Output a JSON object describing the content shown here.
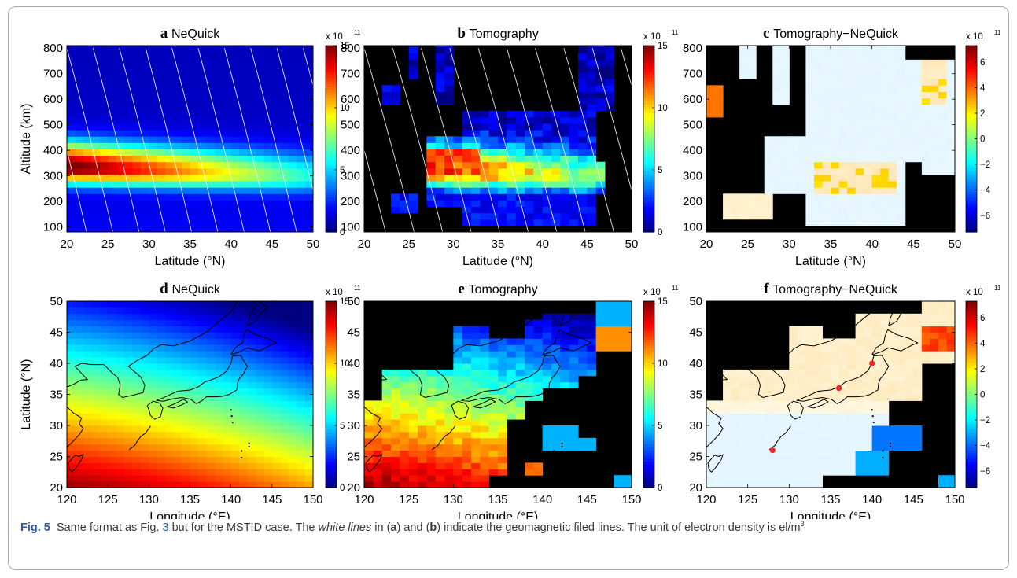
{
  "caption": {
    "label": "Fig. 5",
    "part1": "Same format as Fig. ",
    "fig_ref": "3",
    "part2": " but for the MSTID case. The ",
    "italic": "white lines",
    "part3": " in (",
    "a": "a",
    "part4": ") and (",
    "b": "b",
    "part5": ") indicate the geomagnetic filed lines. The unit of electron density is el/m",
    "sup": "3"
  },
  "chart_data": [
    {
      "id": "a",
      "panel_letter": "a",
      "panel_title": "NeQuick",
      "type": "heatmap",
      "kind": "nequick_alt",
      "xlabel": "Latitude (°N)",
      "ylabel": "Altitude (km)",
      "xlim": [
        20,
        50
      ],
      "ylim": [
        80,
        810
      ],
      "xticks": [
        "20",
        "25",
        "30",
        "35",
        "40",
        "45",
        "50"
      ],
      "yticks": [
        "100",
        "200",
        "300",
        "400",
        "500",
        "600",
        "700",
        "800"
      ],
      "colorbar": {
        "ticks": [
          "0",
          "5",
          "10",
          "15"
        ],
        "range": [
          0,
          15
        ],
        "scale_label": "x 10",
        "scale_exp": "11",
        "colormap": "jet"
      },
      "field_lines": true
    },
    {
      "id": "b",
      "panel_letter": "b",
      "panel_title": "Tomography",
      "type": "heatmap",
      "kind": "tomo_alt",
      "xlabel": "Latitude (°N)",
      "ylabel": "",
      "xlim": [
        20,
        50
      ],
      "ylim": [
        80,
        810
      ],
      "xticks": [
        "20",
        "25",
        "30",
        "35",
        "40",
        "45",
        "50"
      ],
      "yticks": [
        "100",
        "200",
        "300",
        "400",
        "500",
        "600",
        "700",
        "800"
      ],
      "colorbar": {
        "ticks": [
          "0",
          "5",
          "10",
          "15"
        ],
        "range": [
          0,
          15
        ],
        "scale_label": "x 10",
        "scale_exp": "11",
        "colormap": "jet"
      },
      "field_lines": true
    },
    {
      "id": "c",
      "panel_letter": "c",
      "panel_title": "Tomography−NeQuick",
      "type": "heatmap",
      "kind": "diff_alt",
      "xlabel": "Latitude (°N)",
      "ylabel": "",
      "xlim": [
        20,
        50
      ],
      "ylim": [
        80,
        810
      ],
      "xticks": [
        "20",
        "25",
        "30",
        "35",
        "40",
        "45",
        "50"
      ],
      "yticks": [
        "100",
        "200",
        "300",
        "400",
        "500",
        "600",
        "700",
        "800"
      ],
      "colorbar": {
        "ticks": [
          "6",
          "4",
          "2",
          "0",
          "−2",
          "−4",
          "−6"
        ],
        "range": [
          -7.3,
          7.3
        ],
        "scale_label": "x 10",
        "scale_exp": "11",
        "colormap": "jet"
      },
      "field_lines": false
    },
    {
      "id": "d",
      "panel_letter": "d",
      "panel_title": "NeQuick",
      "type": "heatmap",
      "kind": "nequick_map",
      "xlabel": "Longitude (°E)",
      "ylabel": "Latitude (°N)",
      "xlim": [
        120,
        150
      ],
      "ylim": [
        20,
        50
      ],
      "xticks": [
        "120",
        "125",
        "130",
        "135",
        "140",
        "145",
        "150"
      ],
      "yticks": [
        "20",
        "25",
        "30",
        "35",
        "40",
        "45",
        "50"
      ],
      "colorbar": {
        "ticks": [
          "0",
          "5",
          "10",
          "15"
        ],
        "range": [
          0,
          15
        ],
        "scale_label": "x 10",
        "scale_exp": "11",
        "colormap": "jet"
      },
      "field_lines": false
    },
    {
      "id": "e",
      "panel_letter": "e",
      "panel_title": "Tomography",
      "type": "heatmap",
      "kind": "tomo_map",
      "xlabel": "Longitude (°E)",
      "ylabel": "",
      "xlim": [
        120,
        150
      ],
      "ylim": [
        20,
        50
      ],
      "xticks": [
        "120",
        "125",
        "130",
        "135",
        "140",
        "145",
        "150"
      ],
      "yticks": [
        "20",
        "25",
        "30",
        "35",
        "40",
        "45",
        "50"
      ],
      "colorbar": {
        "ticks": [
          "0",
          "5",
          "10",
          "15"
        ],
        "range": [
          0,
          15
        ],
        "scale_label": "x 10",
        "scale_exp": "11",
        "colormap": "jet"
      },
      "field_lines": false
    },
    {
      "id": "f",
      "panel_letter": "f",
      "panel_title": "Tomography−NeQuick",
      "type": "heatmap",
      "kind": "diff_map",
      "xlabel": "Longitude (°E)",
      "ylabel": "",
      "xlim": [
        120,
        150
      ],
      "ylim": [
        20,
        50
      ],
      "xticks": [
        "120",
        "125",
        "130",
        "135",
        "140",
        "145",
        "150"
      ],
      "yticks": [
        "20",
        "25",
        "30",
        "35",
        "40",
        "45",
        "50"
      ],
      "colorbar": {
        "ticks": [
          "6",
          "4",
          "2",
          "0",
          "−2",
          "−4",
          "−6"
        ],
        "range": [
          -7.3,
          7.3
        ],
        "scale_label": "x 10",
        "scale_exp": "11",
        "colormap": "jet"
      },
      "field_lines": false,
      "stations": [
        {
          "lon": 128,
          "lat": 26
        },
        {
          "lon": 136,
          "lat": 36
        },
        {
          "lon": 140,
          "lat": 40
        }
      ]
    }
  ]
}
